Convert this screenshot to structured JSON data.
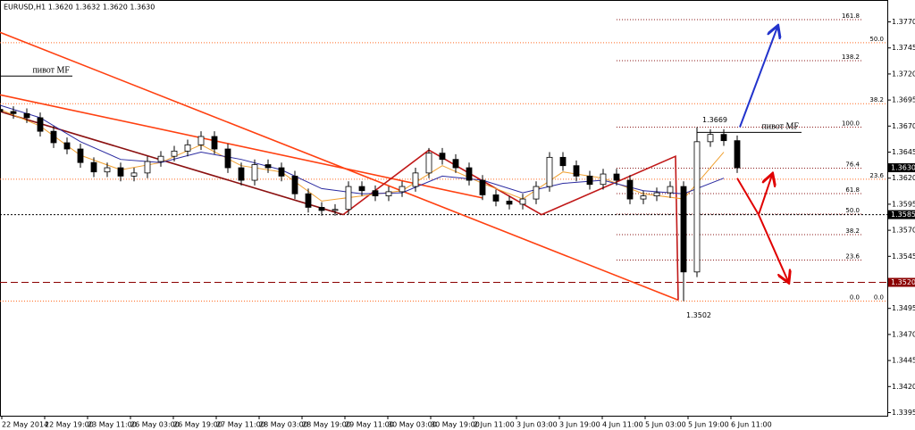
{
  "chart_data": {
    "type": "candlestick",
    "title": "EURUSD,H1  1.3620 1.3632 1.3620 1.3630",
    "xlim": [
      0,
      331
    ],
    "ylim": [
      1.3392,
      1.3791
    ],
    "xticks": [
      {
        "value": 0,
        "label": "22 May 2014"
      },
      {
        "value": 16,
        "label": "22 May 19:00"
      },
      {
        "value": 32,
        "label": "23 May 11:00"
      },
      {
        "value": 48,
        "label": "26 May 03:00"
      },
      {
        "value": 64,
        "label": "26 May 19:00"
      },
      {
        "value": 80,
        "label": "27 May 11:00"
      },
      {
        "value": 96,
        "label": "28 May 03:00"
      },
      {
        "value": 112,
        "label": "28 May 19:00"
      },
      {
        "value": 128,
        "label": "29 May 11:00"
      },
      {
        "value": 144,
        "label": "30 May 03:00"
      },
      {
        "value": 160,
        "label": "30 May 19:00"
      },
      {
        "value": 176,
        "label": "2 Jun 11:00"
      },
      {
        "value": 192,
        "label": "3 Jun 03:00"
      },
      {
        "value": 208,
        "label": "3 Jun 19:00"
      },
      {
        "value": 224,
        "label": "4 Jun 11:00"
      },
      {
        "value": 240,
        "label": "5 Jun 03:00"
      },
      {
        "value": 256,
        "label": "5 Jun 19:00"
      },
      {
        "value": 272,
        "label": "6 Jun 11:00"
      }
    ],
    "yticks": [
      1.3395,
      {
        "value": 1.342,
        "label": "1.3420"
      },
      1.3445,
      {
        "value": 1.347,
        "label": "1.3470"
      },
      1.3495,
      {
        "value": 1.352,
        "label": "1.3520"
      },
      1.3545,
      {
        "value": 1.357,
        "label": "1.3570"
      },
      1.3595,
      {
        "value": 1.362,
        "label": "1.3620"
      },
      1.3645,
      {
        "value": 1.367,
        "label": "1.3670"
      },
      1.3695,
      {
        "value": 1.372,
        "label": "1.3720"
      },
      1.3745,
      {
        "value": 1.377,
        "label": "1.3770"
      }
    ],
    "up_color": "#ffffff",
    "down_color": "#000000",
    "candles": {
      "x": [
        0,
        5,
        10,
        15,
        20,
        25,
        30,
        35,
        40,
        45,
        50,
        55,
        60,
        65,
        70,
        75,
        80,
        85,
        90,
        95,
        100,
        105,
        110,
        115,
        120,
        125,
        130,
        135,
        140,
        145,
        150,
        155,
        160,
        165,
        170,
        175,
        180,
        185,
        190,
        195,
        200,
        205,
        210,
        215,
        220,
        225,
        230,
        235,
        240,
        245,
        250,
        255,
        260,
        265,
        270,
        275
      ],
      "open": [
        1.3686,
        1.3684,
        1.3682,
        1.3678,
        1.3665,
        1.3654,
        1.3648,
        1.3635,
        1.3626,
        1.363,
        1.3622,
        1.3625,
        1.3636,
        1.3641,
        1.3646,
        1.3652,
        1.366,
        1.3648,
        1.363,
        1.3618,
        1.3633,
        1.363,
        1.3622,
        1.3605,
        1.3592,
        1.3589,
        1.359,
        1.3612,
        1.3608,
        1.3603,
        1.3607,
        1.3612,
        1.3625,
        1.3644,
        1.3638,
        1.363,
        1.3618,
        1.3604,
        1.3598,
        1.3595,
        1.36,
        1.3612,
        1.364,
        1.3632,
        1.3622,
        1.3614,
        1.3624,
        1.3618,
        1.36,
        1.3603,
        1.3606,
        1.3612,
        1.353,
        1.3655,
        1.3662,
        1.3656
      ],
      "high": [
        1.3691,
        1.3689,
        1.3687,
        1.3683,
        1.367,
        1.3659,
        1.3653,
        1.364,
        1.3635,
        1.3635,
        1.363,
        1.3641,
        1.3646,
        1.3651,
        1.3657,
        1.3665,
        1.3665,
        1.3653,
        1.3635,
        1.3638,
        1.3638,
        1.3635,
        1.3627,
        1.361,
        1.3597,
        1.3595,
        1.3617,
        1.3617,
        1.3613,
        1.3612,
        1.3617,
        1.363,
        1.3649,
        1.3649,
        1.3643,
        1.3635,
        1.3623,
        1.3609,
        1.3603,
        1.3605,
        1.3617,
        1.3645,
        1.3645,
        1.3637,
        1.3627,
        1.3629,
        1.3629,
        1.3623,
        1.3608,
        1.3611,
        1.3617,
        1.3617,
        1.3669,
        1.3667,
        1.3667,
        1.3661
      ],
      "low": [
        1.3679,
        1.3677,
        1.3673,
        1.366,
        1.3649,
        1.3643,
        1.363,
        1.3621,
        1.3621,
        1.3617,
        1.3617,
        1.362,
        1.3631,
        1.3636,
        1.3641,
        1.3647,
        1.3643,
        1.3625,
        1.3613,
        1.3613,
        1.3625,
        1.3617,
        1.36,
        1.3587,
        1.3584,
        1.3584,
        1.3585,
        1.3603,
        1.3598,
        1.3598,
        1.3602,
        1.3607,
        1.362,
        1.3633,
        1.3625,
        1.3613,
        1.3599,
        1.3593,
        1.359,
        1.359,
        1.3595,
        1.3607,
        1.3627,
        1.3617,
        1.3609,
        1.3609,
        1.3613,
        1.3595,
        1.3595,
        1.3598,
        1.3601,
        1.3502,
        1.3525,
        1.365,
        1.3651,
        1.3625
      ],
      "close": [
        1.3684,
        1.3682,
        1.3678,
        1.3665,
        1.3654,
        1.3648,
        1.3635,
        1.3626,
        1.363,
        1.3622,
        1.3625,
        1.3636,
        1.3641,
        1.3646,
        1.3652,
        1.366,
        1.3648,
        1.363,
        1.3618,
        1.3633,
        1.363,
        1.3622,
        1.3605,
        1.3592,
        1.3589,
        1.359,
        1.3612,
        1.3608,
        1.3603,
        1.3607,
        1.3612,
        1.3625,
        1.3644,
        1.3638,
        1.363,
        1.3618,
        1.3604,
        1.3598,
        1.3595,
        1.36,
        1.3612,
        1.364,
        1.3632,
        1.3622,
        1.3614,
        1.3624,
        1.3618,
        1.36,
        1.3603,
        1.3606,
        1.3612,
        1.353,
        1.3655,
        1.3662,
        1.3656,
        1.363
      ]
    },
    "indicators": [
      {
        "color": "#f0a030",
        "x": [
          0,
          15,
          30,
          45,
          60,
          75,
          90,
          105,
          120,
          135,
          150,
          165,
          180,
          195,
          210,
          225,
          240,
          255,
          270
        ],
        "values": [
          1.3686,
          1.367,
          1.3642,
          1.3628,
          1.3635,
          1.3652,
          1.3632,
          1.3626,
          1.3598,
          1.3603,
          1.3608,
          1.3632,
          1.3615,
          1.36,
          1.3626,
          1.362,
          1.3605,
          1.36,
          1.3645
        ]
      },
      {
        "color": "#2a2aa0",
        "x": [
          0,
          15,
          30,
          45,
          60,
          75,
          90,
          105,
          120,
          135,
          150,
          165,
          180,
          195,
          210,
          225,
          240,
          255,
          270
        ],
        "values": [
          1.369,
          1.3678,
          1.3655,
          1.3638,
          1.3635,
          1.3645,
          1.3638,
          1.3628,
          1.361,
          1.3605,
          1.3606,
          1.3622,
          1.3618,
          1.3606,
          1.3615,
          1.3618,
          1.3608,
          1.3605,
          1.362
        ]
      }
    ],
    "lines": [
      {
        "color": "#ff4010",
        "x": [
          0,
          253
        ],
        "y": [
          1.376,
          1.3503
        ]
      },
      {
        "color": "#ff4010",
        "x": [
          0,
          180
        ],
        "y": [
          1.37,
          1.3601
        ]
      },
      {
        "color": "#8b1010",
        "x": [
          0,
          128
        ],
        "y": [
          1.3684,
          1.3585
        ]
      },
      {
        "color": "#c01818",
        "x": [
          128,
          160,
          202,
          252,
          253
        ],
        "y": [
          1.3585,
          1.3647,
          1.3585,
          1.3641,
          1.3503
        ]
      }
    ],
    "arrows": [
      {
        "color": "#2233cc",
        "x": [
          276,
          290
        ],
        "y": [
          1.3669,
          1.3765
        ]
      },
      {
        "color": "#e00000",
        "x": [
          275,
          283,
          288
        ],
        "y": [
          1.362,
          1.3585,
          1.3623
        ]
      },
      {
        "color": "#e00000",
        "x": [
          283,
          294
        ],
        "y": [
          1.3585,
          1.3521
        ]
      }
    ],
    "fibonacci": [
      {
        "color": "#8b1a1a",
        "from": 1.3502,
        "to": 1.3669,
        "span": [
          230,
          322
        ],
        "levels": [
          161.8,
          138.2,
          {
            "value": 100,
            "label": "100.0"
          },
          76.4,
          61.8,
          {
            "value": 50,
            "label": "50.0"
          },
          38.2,
          23.6,
          {
            "value": 0,
            "label": "0.0"
          }
        ]
      },
      {
        "color": "#ff6a20",
        "from": 1.3502,
        "to": 1.3998,
        "span": [
          0,
          331
        ],
        "levels": [
          {
            "value": 50,
            "label": "50.0"
          },
          38.2,
          23.6,
          {
            "value": 0,
            "label": "0.0"
          }
        ]
      }
    ],
    "hlines": [
      {
        "value": 1.3585,
        "label": "1.3585",
        "color": "#000000",
        "dash": "2 2"
      },
      {
        "value": 1.352,
        "label": "1.3520",
        "color": "#8b0000",
        "dash": "8 4"
      }
    ],
    "current": {
      "value": 1.363,
      "label": "1.3630"
    },
    "pivots": [
      {
        "label": "пивот MF",
        "value": 1.3718,
        "span": [
          0,
          27
        ]
      },
      {
        "label": "пивот MF",
        "value": 1.3664,
        "span": [
          260,
          299
        ]
      }
    ],
    "annotations": [
      {
        "label": "1.3669",
        "value": 1.3669
      },
      {
        "label": "1.3502",
        "value": 1.3502
      }
    ]
  }
}
